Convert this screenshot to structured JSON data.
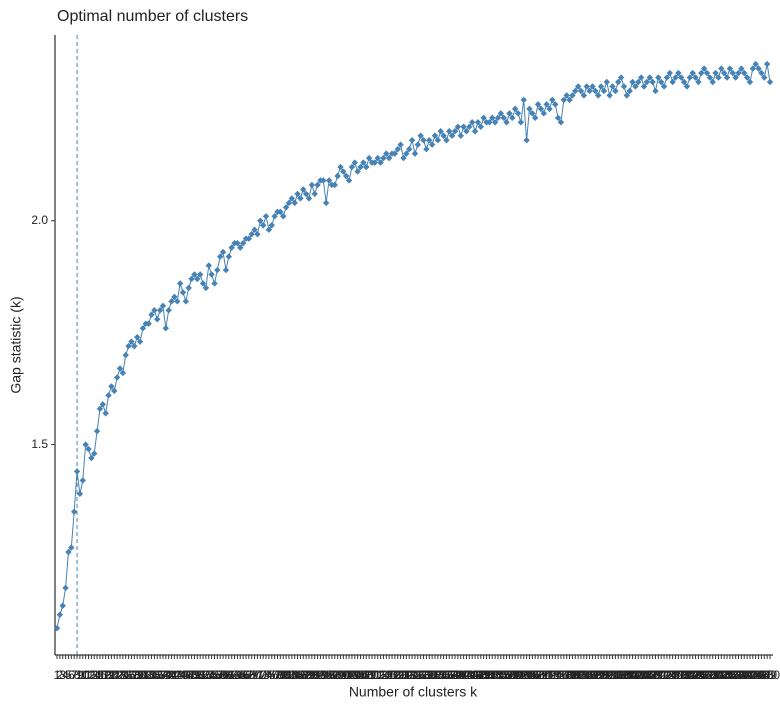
{
  "chart_data": {
    "type": "line",
    "title": "Optimal number of clusters",
    "x_label": "Number of clusters k",
    "y_label": "Gap statistic (k)",
    "categories": [
      "1",
      "2",
      "3",
      "4",
      "5",
      "6",
      "7",
      "8",
      "9",
      "10",
      "11",
      "12",
      "13",
      "14",
      "15",
      "16",
      "17",
      "18",
      "19",
      "20",
      "21",
      "22",
      "23",
      "24",
      "25",
      "26",
      "27",
      "28",
      "29",
      "30",
      "31",
      "32",
      "33",
      "34",
      "35",
      "36",
      "37",
      "38",
      "39",
      "40",
      "41",
      "42",
      "43",
      "44",
      "45",
      "46",
      "47",
      "48",
      "49",
      "50",
      "51",
      "52",
      "53",
      "54",
      "55",
      "56",
      "57",
      "58",
      "59",
      "60",
      "61",
      "62",
      "63",
      "64",
      "65",
      "66",
      "67",
      "68",
      "69",
      "70",
      "71",
      "72",
      "73",
      "74",
      "75",
      "76",
      "77",
      "78",
      "79",
      "80",
      "81",
      "82",
      "83",
      "84",
      "85",
      "86",
      "87",
      "88",
      "89",
      "90",
      "91",
      "92",
      "93",
      "94",
      "95",
      "96",
      "97",
      "98",
      "99",
      "100",
      "101",
      "102",
      "103",
      "104",
      "105",
      "106",
      "107",
      "108",
      "109",
      "110",
      "111",
      "112",
      "113",
      "114",
      "115",
      "116",
      "117",
      "118",
      "119",
      "120",
      "121",
      "122",
      "123",
      "124",
      "125",
      "126",
      "127",
      "128",
      "129",
      "130",
      "131",
      "132",
      "133",
      "134",
      "135",
      "136",
      "137",
      "138",
      "139",
      "140",
      "141",
      "142",
      "143",
      "144",
      "145",
      "146",
      "147",
      "148",
      "149",
      "150",
      "151",
      "152",
      "153",
      "154",
      "155",
      "156",
      "157",
      "158",
      "159",
      "160",
      "161",
      "162",
      "163",
      "164",
      "165",
      "166",
      "167",
      "168",
      "169",
      "170",
      "171",
      "172",
      "173",
      "174",
      "175",
      "176",
      "177",
      "178",
      "179",
      "180",
      "181",
      "182",
      "183",
      "184",
      "185",
      "186",
      "187",
      "188",
      "189",
      "190",
      "191",
      "192",
      "193",
      "194",
      "195",
      "196",
      "197",
      "198",
      "199",
      "200",
      "201",
      "202",
      "203",
      "204",
      "205",
      "206",
      "207",
      "208",
      "209",
      "210",
      "211",
      "212",
      "213",
      "214",
      "215",
      "216",
      "217",
      "218",
      "219",
      "220",
      "221",
      "222",
      "223",
      "224",
      "225",
      "226",
      "227",
      "228",
      "229",
      "230",
      "231",
      "232",
      "233",
      "234",
      "235",
      "236",
      "237",
      "238",
      "239",
      "240",
      "241",
      "242",
      "243",
      "244",
      "245",
      "246",
      "247",
      "248",
      "249",
      "250"
    ],
    "series": [
      {
        "color": "#4682b4",
        "values": [
          1.09,
          1.12,
          1.14,
          1.18,
          1.26,
          1.27,
          1.35,
          1.44,
          1.39,
          1.42,
          1.5,
          1.49,
          1.47,
          1.48,
          1.53,
          1.58,
          1.59,
          1.57,
          1.61,
          1.63,
          1.62,
          1.65,
          1.67,
          1.66,
          1.7,
          1.72,
          1.73,
          1.72,
          1.74,
          1.73,
          1.76,
          1.77,
          1.77,
          1.79,
          1.8,
          1.78,
          1.8,
          1.81,
          1.76,
          1.8,
          1.82,
          1.83,
          1.82,
          1.86,
          1.84,
          1.82,
          1.85,
          1.87,
          1.88,
          1.87,
          1.88,
          1.86,
          1.85,
          1.9,
          1.88,
          1.86,
          1.89,
          1.92,
          1.93,
          1.89,
          1.92,
          1.94,
          1.95,
          1.95,
          1.94,
          1.95,
          1.96,
          1.96,
          1.97,
          1.98,
          1.97,
          2.0,
          1.99,
          2.01,
          1.98,
          1.99,
          2.01,
          2.02,
          2.02,
          2.01,
          2.03,
          2.04,
          2.05,
          2.04,
          2.06,
          2.05,
          2.07,
          2.06,
          2.05,
          2.08,
          2.06,
          2.08,
          2.09,
          2.09,
          2.04,
          2.09,
          2.08,
          2.08,
          2.1,
          2.12,
          2.11,
          2.1,
          2.09,
          2.12,
          2.13,
          2.11,
          2.12,
          2.13,
          2.12,
          2.14,
          2.13,
          2.13,
          2.14,
          2.13,
          2.14,
          2.15,
          2.14,
          2.15,
          2.15,
          2.16,
          2.17,
          2.14,
          2.15,
          2.16,
          2.18,
          2.15,
          2.17,
          2.19,
          2.18,
          2.16,
          2.18,
          2.17,
          2.19,
          2.18,
          2.2,
          2.19,
          2.18,
          2.2,
          2.19,
          2.2,
          2.21,
          2.19,
          2.21,
          2.2,
          2.21,
          2.22,
          2.2,
          2.22,
          2.21,
          2.23,
          2.22,
          2.22,
          2.23,
          2.22,
          2.23,
          2.24,
          2.23,
          2.22,
          2.24,
          2.23,
          2.25,
          2.24,
          2.22,
          2.27,
          2.18,
          2.25,
          2.24,
          2.23,
          2.26,
          2.25,
          2.24,
          2.26,
          2.25,
          2.27,
          2.26,
          2.23,
          2.22,
          2.27,
          2.28,
          2.27,
          2.28,
          2.29,
          2.3,
          2.29,
          2.28,
          2.3,
          2.29,
          2.3,
          2.29,
          2.28,
          2.3,
          2.29,
          2.31,
          2.28,
          2.3,
          2.29,
          2.31,
          2.32,
          2.3,
          2.28,
          2.29,
          2.31,
          2.3,
          2.31,
          2.32,
          2.3,
          2.31,
          2.32,
          2.31,
          2.29,
          2.32,
          2.31,
          2.3,
          2.32,
          2.33,
          2.31,
          2.32,
          2.33,
          2.32,
          2.31,
          2.3,
          2.32,
          2.33,
          2.32,
          2.31,
          2.33,
          2.34,
          2.33,
          2.32,
          2.31,
          2.33,
          2.32,
          2.34,
          2.33,
          2.32,
          2.34,
          2.33,
          2.32,
          2.33,
          2.34,
          2.33,
          2.32,
          2.31,
          2.34,
          2.35,
          2.34,
          2.33,
          2.32,
          2.35,
          2.31
        ]
      }
    ],
    "vline": 8,
    "ylim": [
      1.03,
      2.415
    ],
    "yticks": [
      1.5,
      {
        "value": 2,
        "label": "2.0"
      }
    ]
  }
}
